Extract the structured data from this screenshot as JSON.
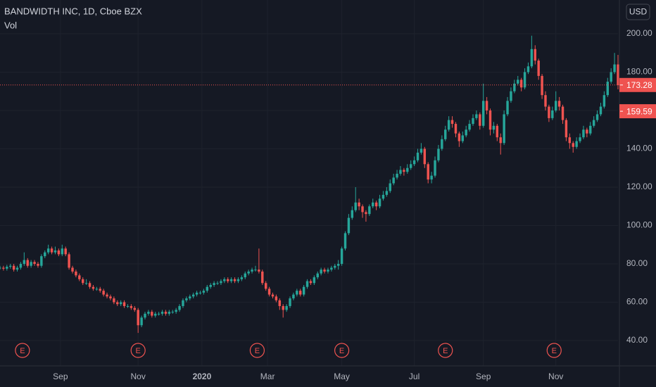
{
  "chart_data": {
    "type": "candlestick",
    "title": "BANDWIDTH INC, 1D, Cboe BZX",
    "subtitle": "Vol",
    "currency": "USD",
    "up_color": "#26a69a",
    "down_color": "#ef5350",
    "grid": true,
    "xlim": [
      0,
      358
    ],
    "ylim": [
      26.8,
      217.6
    ],
    "yticks": [
      {
        "value": 40,
        "label": "40.00"
      },
      {
        "value": 60,
        "label": "60.00"
      },
      {
        "value": 80,
        "label": "80.00"
      },
      {
        "value": 100,
        "label": "100.00"
      },
      {
        "value": 120,
        "label": "120.00"
      },
      {
        "value": 140,
        "label": "140.00"
      },
      {
        "value": 160,
        "label": "160.00"
      },
      {
        "value": 180,
        "label": "180.00"
      },
      {
        "value": 200,
        "label": "200.00"
      }
    ],
    "xticks": [
      {
        "value": 35,
        "label": "Sep"
      },
      {
        "value": 80,
        "label": "Nov"
      },
      {
        "value": 117,
        "label": "2020"
      },
      {
        "value": 155,
        "label": "Mar"
      },
      {
        "value": 198,
        "label": "May"
      },
      {
        "value": 240,
        "label": "Jul"
      },
      {
        "value": 280,
        "label": "Sep"
      },
      {
        "value": 322,
        "label": "Nov"
      }
    ],
    "price_labels": [
      173.28,
      159.59
    ],
    "events": [
      {
        "x": 13,
        "label": "E"
      },
      {
        "x": 80,
        "label": "E"
      },
      {
        "x": 149,
        "label": "E"
      },
      {
        "x": 198,
        "label": "E"
      },
      {
        "x": 258,
        "label": "E"
      },
      {
        "x": 321,
        "label": "E"
      }
    ],
    "candles": [
      [
        0,
        77.8,
        79,
        77,
        78
      ],
      [
        2,
        78,
        79,
        76.5,
        77.5
      ],
      [
        4,
        77.5,
        79.5,
        76.5,
        78.5
      ],
      [
        6,
        78.5,
        80,
        77.5,
        79
      ],
      [
        8,
        79,
        80,
        76,
        77
      ],
      [
        10,
        77,
        79,
        76,
        78
      ],
      [
        12,
        78,
        81,
        77,
        80
      ],
      [
        14,
        80,
        86,
        79,
        82
      ],
      [
        16,
        82,
        83,
        78,
        79
      ],
      [
        18,
        79,
        82,
        78,
        81
      ],
      [
        20,
        81,
        82,
        79,
        80
      ],
      [
        22,
        80,
        81,
        78,
        79
      ],
      [
        24,
        79,
        85,
        78,
        84
      ],
      [
        26,
        84,
        87,
        83,
        86
      ],
      [
        28,
        86,
        90,
        85,
        88
      ],
      [
        30,
        88,
        89,
        85,
        86
      ],
      [
        32,
        86,
        89,
        85,
        87
      ],
      [
        34,
        87,
        88,
        84,
        85
      ],
      [
        36,
        85,
        90,
        84,
        88
      ],
      [
        38,
        88,
        89,
        84,
        85
      ],
      [
        40,
        85,
        86,
        77,
        78
      ],
      [
        42,
        78,
        79,
        75,
        76
      ],
      [
        44,
        76,
        77,
        73,
        74
      ],
      [
        46,
        74,
        75,
        71,
        72
      ],
      [
        48,
        72,
        73,
        69,
        70
      ],
      [
        50,
        70,
        72,
        69,
        70
      ],
      [
        52,
        70,
        71,
        67,
        68
      ],
      [
        54,
        68,
        69,
        66,
        67
      ],
      [
        56,
        67,
        68,
        66,
        67
      ],
      [
        58,
        67,
        68,
        65,
        66
      ],
      [
        60,
        66,
        67,
        63,
        64
      ],
      [
        62,
        64,
        65,
        62,
        63
      ],
      [
        64,
        63,
        64,
        61,
        62
      ],
      [
        66,
        62,
        63,
        59,
        60
      ],
      [
        68,
        60,
        61,
        58,
        59
      ],
      [
        70,
        59,
        61,
        58,
        60
      ],
      [
        72,
        60,
        61,
        57,
        58
      ],
      [
        74,
        58,
        59,
        57,
        58
      ],
      [
        76,
        58,
        59,
        56,
        57
      ],
      [
        78,
        57,
        58,
        55,
        56
      ],
      [
        80,
        56,
        57,
        44,
        48
      ],
      [
        82,
        48,
        53,
        47,
        52
      ],
      [
        84,
        52,
        55,
        51,
        54
      ],
      [
        86,
        54,
        56,
        53,
        55
      ],
      [
        88,
        55,
        56,
        52,
        53
      ],
      [
        90,
        53,
        55,
        52,
        54
      ],
      [
        92,
        54,
        55,
        53,
        54
      ],
      [
        94,
        54,
        56,
        53,
        55
      ],
      [
        96,
        55,
        56,
        53,
        54
      ],
      [
        98,
        54,
        56,
        53,
        55
      ],
      [
        100,
        55,
        56,
        54,
        55
      ],
      [
        102,
        55,
        57,
        54,
        56
      ],
      [
        104,
        56,
        59,
        55,
        58
      ],
      [
        106,
        58,
        62,
        57,
        61
      ],
      [
        108,
        61,
        63,
        60,
        62
      ],
      [
        110,
        62,
        64,
        61,
        63
      ],
      [
        112,
        63,
        65,
        62,
        64
      ],
      [
        114,
        64,
        66,
        63,
        65
      ],
      [
        116,
        65,
        66,
        64,
        65
      ],
      [
        118,
        65,
        67,
        64,
        66
      ],
      [
        120,
        66,
        69,
        65,
        68
      ],
      [
        122,
        68,
        70,
        67,
        69
      ],
      [
        124,
        69,
        71,
        68,
        70
      ],
      [
        126,
        70,
        71,
        69,
        70
      ],
      [
        128,
        70,
        72,
        69,
        71
      ],
      [
        130,
        71,
        73,
        70,
        72
      ],
      [
        132,
        72,
        73,
        70,
        71
      ],
      [
        134,
        71,
        73,
        70,
        72
      ],
      [
        136,
        72,
        73,
        70,
        71
      ],
      [
        138,
        71,
        73,
        70,
        72
      ],
      [
        140,
        72,
        74,
        71,
        73
      ],
      [
        142,
        73,
        76,
        72,
        75
      ],
      [
        144,
        75,
        77,
        74,
        76
      ],
      [
        146,
        76,
        78,
        75,
        77
      ],
      [
        148,
        77,
        79,
        76,
        77
      ],
      [
        150,
        77,
        88,
        75,
        76
      ],
      [
        152,
        76,
        77,
        69,
        70
      ],
      [
        154,
        70,
        71,
        66,
        67
      ],
      [
        156,
        67,
        68,
        63,
        64
      ],
      [
        158,
        64,
        65,
        62,
        63
      ],
      [
        160,
        63,
        64,
        60,
        61
      ],
      [
        162,
        61,
        62,
        56,
        58
      ],
      [
        164,
        58,
        59,
        52,
        56
      ],
      [
        166,
        56,
        59,
        55,
        58
      ],
      [
        168,
        58,
        63,
        57,
        62
      ],
      [
        170,
        62,
        65,
        61,
        64
      ],
      [
        172,
        64,
        67,
        63,
        66
      ],
      [
        174,
        66,
        67,
        63,
        64
      ],
      [
        176,
        64,
        69,
        63,
        68
      ],
      [
        178,
        68,
        72,
        67,
        71
      ],
      [
        180,
        71,
        72,
        69,
        70
      ],
      [
        182,
        70,
        74,
        69,
        73
      ],
      [
        184,
        73,
        76,
        72,
        75
      ],
      [
        186,
        75,
        78,
        74,
        77
      ],
      [
        188,
        77,
        78,
        75,
        76
      ],
      [
        190,
        76,
        78,
        75,
        77
      ],
      [
        192,
        77,
        79,
        76,
        78
      ],
      [
        194,
        78,
        80,
        77,
        79
      ],
      [
        196,
        79,
        82,
        77,
        80
      ],
      [
        198,
        80,
        89,
        79,
        88
      ],
      [
        200,
        88,
        97,
        87,
        96
      ],
      [
        202,
        96,
        106,
        95,
        104
      ],
      [
        204,
        104,
        110,
        103,
        108
      ],
      [
        206,
        108,
        120,
        107,
        112
      ],
      [
        208,
        112,
        114,
        108,
        110
      ],
      [
        210,
        110,
        111,
        104,
        107
      ],
      [
        212,
        107,
        108,
        102,
        106
      ],
      [
        214,
        106,
        111,
        105,
        110
      ],
      [
        216,
        110,
        114,
        109,
        112
      ],
      [
        218,
        112,
        113,
        108,
        110
      ],
      [
        220,
        110,
        116,
        109,
        114
      ],
      [
        222,
        114,
        118,
        113,
        116
      ],
      [
        224,
        116,
        120,
        115,
        118
      ],
      [
        226,
        118,
        124,
        117,
        122
      ],
      [
        228,
        122,
        127,
        121,
        125
      ],
      [
        230,
        125,
        129,
        124,
        127
      ],
      [
        232,
        127,
        131,
        126,
        129
      ],
      [
        234,
        129,
        130,
        126,
        128
      ],
      [
        236,
        128,
        132,
        127,
        130
      ],
      [
        238,
        130,
        134,
        129,
        132
      ],
      [
        240,
        132,
        136,
        131,
        134
      ],
      [
        242,
        134,
        140,
        133,
        138
      ],
      [
        244,
        138,
        143,
        137,
        140
      ],
      [
        246,
        140,
        141,
        130,
        132
      ],
      [
        248,
        132,
        133,
        122,
        124
      ],
      [
        250,
        124,
        128,
        122,
        126
      ],
      [
        252,
        126,
        136,
        125,
        134
      ],
      [
        254,
        134,
        142,
        133,
        140
      ],
      [
        256,
        140,
        147,
        139,
        145
      ],
      [
        258,
        145,
        152,
        144,
        150
      ],
      [
        260,
        150,
        157,
        149,
        155
      ],
      [
        262,
        155,
        157,
        151,
        153
      ],
      [
        264,
        153,
        154,
        146,
        148
      ],
      [
        266,
        148,
        149,
        141,
        144
      ],
      [
        268,
        144,
        149,
        143,
        147
      ],
      [
        270,
        147,
        152,
        146,
        150
      ],
      [
        272,
        150,
        155,
        149,
        153
      ],
      [
        274,
        153,
        158,
        152,
        156
      ],
      [
        276,
        156,
        160,
        155,
        158
      ],
      [
        278,
        158,
        159,
        150,
        152
      ],
      [
        280,
        152,
        174,
        151,
        165
      ],
      [
        282,
        165,
        167,
        158,
        160
      ],
      [
        284,
        160,
        161,
        147,
        150
      ],
      [
        286,
        150,
        154,
        148,
        152
      ],
      [
        288,
        152,
        153,
        144,
        146
      ],
      [
        290,
        146,
        148,
        137,
        143
      ],
      [
        292,
        143,
        160,
        142,
        158
      ],
      [
        294,
        158,
        167,
        157,
        165
      ],
      [
        296,
        165,
        172,
        164,
        170
      ],
      [
        298,
        170,
        176,
        169,
        174
      ],
      [
        300,
        174,
        178,
        173,
        176
      ],
      [
        302,
        176,
        177,
        170,
        172
      ],
      [
        304,
        172,
        182,
        171,
        180
      ],
      [
        306,
        180,
        185,
        179,
        183
      ],
      [
        308,
        183,
        199,
        182,
        192
      ],
      [
        310,
        192,
        194,
        184,
        186
      ],
      [
        312,
        186,
        187,
        176,
        178
      ],
      [
        314,
        178,
        179,
        166,
        168
      ],
      [
        316,
        168,
        170,
        160,
        162
      ],
      [
        318,
        162,
        163,
        154,
        156
      ],
      [
        320,
        156,
        162,
        155,
        160
      ],
      [
        322,
        160,
        170,
        159,
        165
      ],
      [
        324,
        165,
        167,
        160,
        162
      ],
      [
        326,
        162,
        163,
        153,
        155
      ],
      [
        328,
        155,
        156,
        144,
        146
      ],
      [
        330,
        146,
        148,
        140,
        143
      ],
      [
        332,
        143,
        144,
        138,
        141
      ],
      [
        334,
        141,
        146,
        140,
        144
      ],
      [
        336,
        144,
        148,
        143,
        146
      ],
      [
        338,
        146,
        152,
        145,
        150
      ],
      [
        340,
        150,
        151,
        146,
        148
      ],
      [
        342,
        148,
        154,
        147,
        152
      ],
      [
        344,
        152,
        157,
        151,
        155
      ],
      [
        346,
        155,
        160,
        154,
        158
      ],
      [
        348,
        158,
        164,
        157,
        162
      ],
      [
        350,
        162,
        170,
        161,
        168
      ],
      [
        352,
        168,
        177,
        167,
        175
      ],
      [
        354,
        175,
        182,
        174,
        180
      ],
      [
        356,
        180,
        190,
        179,
        184
      ],
      [
        358,
        184,
        189,
        171,
        173.28
      ]
    ]
  }
}
